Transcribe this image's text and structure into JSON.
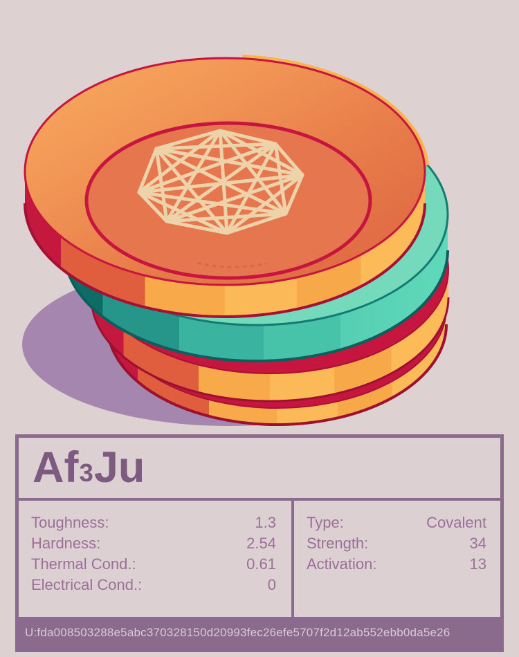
{
  "theme": {
    "background": "#ddd2d1",
    "card_bg": "#ddd0d3",
    "card_border": "#8a6a8d",
    "title_color": "#7d5a80",
    "text_color": "#9b6f97",
    "footer_bg": "#8a6a8d",
    "footer_text": "#dbc9d5",
    "coin_yellow": "#fbb351",
    "coin_orange": "#e05d3d",
    "coin_crimson": "#c6163f",
    "coin_face": "#e5764e",
    "coin_teal": "#3ab4a0",
    "coin_mint": "#74dabb",
    "wireframe": "#eed3aa",
    "shadow": "#a586ae"
  },
  "illustration": {
    "disc_count": 4,
    "disc_colors_top_to_bottom": [
      "orange",
      "teal",
      "orange",
      "orange"
    ],
    "emblem": "wireframe-polyhedron"
  },
  "card": {
    "formula": {
      "prefix": "Af",
      "subscript": "3",
      "suffix": "Ju"
    },
    "properties_left": [
      {
        "label": "Toughness:",
        "value": "1.3"
      },
      {
        "label": "Hardness:",
        "value": "2.54"
      },
      {
        "label": "Thermal Cond.:",
        "value": "0.61"
      },
      {
        "label": "Electrical Cond.:",
        "value": "0"
      }
    ],
    "properties_right": [
      {
        "label": "Type:",
        "value": "Covalent"
      },
      {
        "label": "Strength:",
        "value": "34"
      },
      {
        "label": "Activation:",
        "value": "13"
      }
    ],
    "footer_hash": "U:fda008503288e5abc370328150d20993fec26efe5707f2d12ab552ebb0da5e26"
  }
}
